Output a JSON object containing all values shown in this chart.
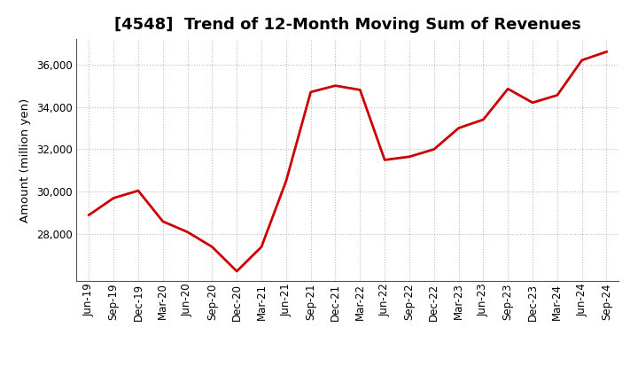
{
  "title": "[4548]  Trend of 12-Month Moving Sum of Revenues",
  "ylabel": "Amount (million yen)",
  "background_color": "#ffffff",
  "line_color": "#cc0000",
  "grid_color": "#bbbbbb",
  "x_labels": [
    "Jun-19",
    "Sep-19",
    "Dec-19",
    "Mar-20",
    "Jun-20",
    "Sep-20",
    "Dec-20",
    "Mar-21",
    "Jun-21",
    "Sep-21",
    "Dec-21",
    "Mar-22",
    "Jun-22",
    "Sep-22",
    "Dec-22",
    "Mar-23",
    "Jun-23",
    "Sep-23",
    "Dec-23",
    "Mar-24",
    "Jun-24",
    "Sep-24"
  ],
  "values": [
    28900,
    29700,
    30050,
    28600,
    28100,
    27400,
    26250,
    27400,
    30500,
    34700,
    35000,
    34800,
    31500,
    31650,
    32000,
    33000,
    33400,
    34850,
    34200,
    34550,
    36200,
    36600
  ],
  "ylim": [
    25800,
    37200
  ],
  "yticks": [
    28000,
    30000,
    32000,
    34000,
    36000
  ],
  "title_fontsize": 13,
  "tick_fontsize": 8.5,
  "ylabel_fontsize": 9.5,
  "line_width": 2.0
}
